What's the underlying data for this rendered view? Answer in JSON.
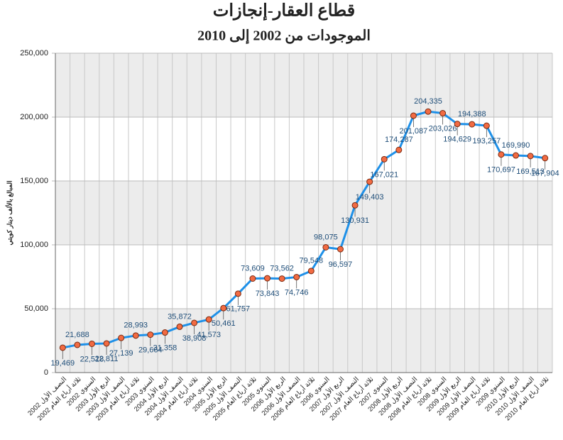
{
  "chart_data": {
    "type": "line",
    "title": "قطاع العقار-إنجازات",
    "subtitle": "الموجودات من 2002 إلى 2010",
    "y_label": "المبالغ بالألف دينار كويتي",
    "categories": [
      "2002 النصف الأول",
      "2002 ثلاثة أرباع العام",
      "2002 السنوي",
      "2003 الربع الأول",
      "2003 النصف الأول",
      "2003 ثلاثة أرباع العام",
      "2003 السنوي",
      "2004 الربع الأول",
      "2004 النصف الأول",
      "2004 ثلاثة أرباع العام",
      "2004 السنوي",
      "2005 الربع الأول",
      "2005 النصف الأول",
      "2005 ثلاثة أرباع العام",
      "2005 السنوي",
      "2006 الربع الأول",
      "2006 النصف الأول",
      "2006 ثلاثة أرباع العام",
      "2006 السنوي",
      "2007 الربع الأول",
      "2007 النصف الأول",
      "2007 ثلاثة أرباع العام",
      "2007 السنوي",
      "2008 الربع الأول",
      "2008 النصف الأول",
      "2008 ثلاثة أرباع العام",
      "2008 السنوي",
      "2009 الربع الأول",
      "2009 النصف الأول",
      "2009 ثلاثة أرباع العام",
      "2009 السنوي",
      "2010 الربع الأول",
      "2010 النصف الأول",
      "2010 ثلاثة أرباع العام"
    ],
    "values": [
      19469,
      21688,
      22518,
      22811,
      27139,
      28993,
      29664,
      31358,
      35872,
      38908,
      41573,
      50461,
      61757,
      73609,
      73843,
      73562,
      74746,
      79548,
      98075,
      96597,
      130931,
      149403,
      167021,
      174287,
      201087,
      204335,
      203026,
      194629,
      194388,
      193257,
      170697,
      169990,
      169513,
      167904
    ],
    "value_labels": [
      "19,469",
      "21,688",
      "22,518",
      "22,811",
      "27,139",
      "28,993",
      "29,664",
      "31,358",
      "35,872",
      "38,908",
      "41,573",
      "50,461",
      "61,757",
      "73,609",
      "73,843",
      "73,562",
      "74,746",
      "79,548",
      "98,075",
      "96,597",
      "130,931",
      "149,403",
      "167,021",
      "174,287",
      "201,087",
      "204,335",
      "203,026",
      "194,629",
      "194,388",
      "193,257",
      "170,697",
      "169,990",
      "169,513",
      "167,904"
    ],
    "color": "#1e90e8",
    "marker_color": "#f26b43",
    "ylim": [
      0,
      250000
    ],
    "yticks": [
      0,
      {
        "value": 50000,
        "label": "50,000"
      },
      {
        "value": 100000,
        "label": "100,000"
      },
      {
        "value": 150000,
        "label": "150,000"
      },
      {
        "value": 200000,
        "label": "200,000"
      },
      {
        "value": 250000,
        "label": "250,000"
      }
    ],
    "grid": true
  }
}
